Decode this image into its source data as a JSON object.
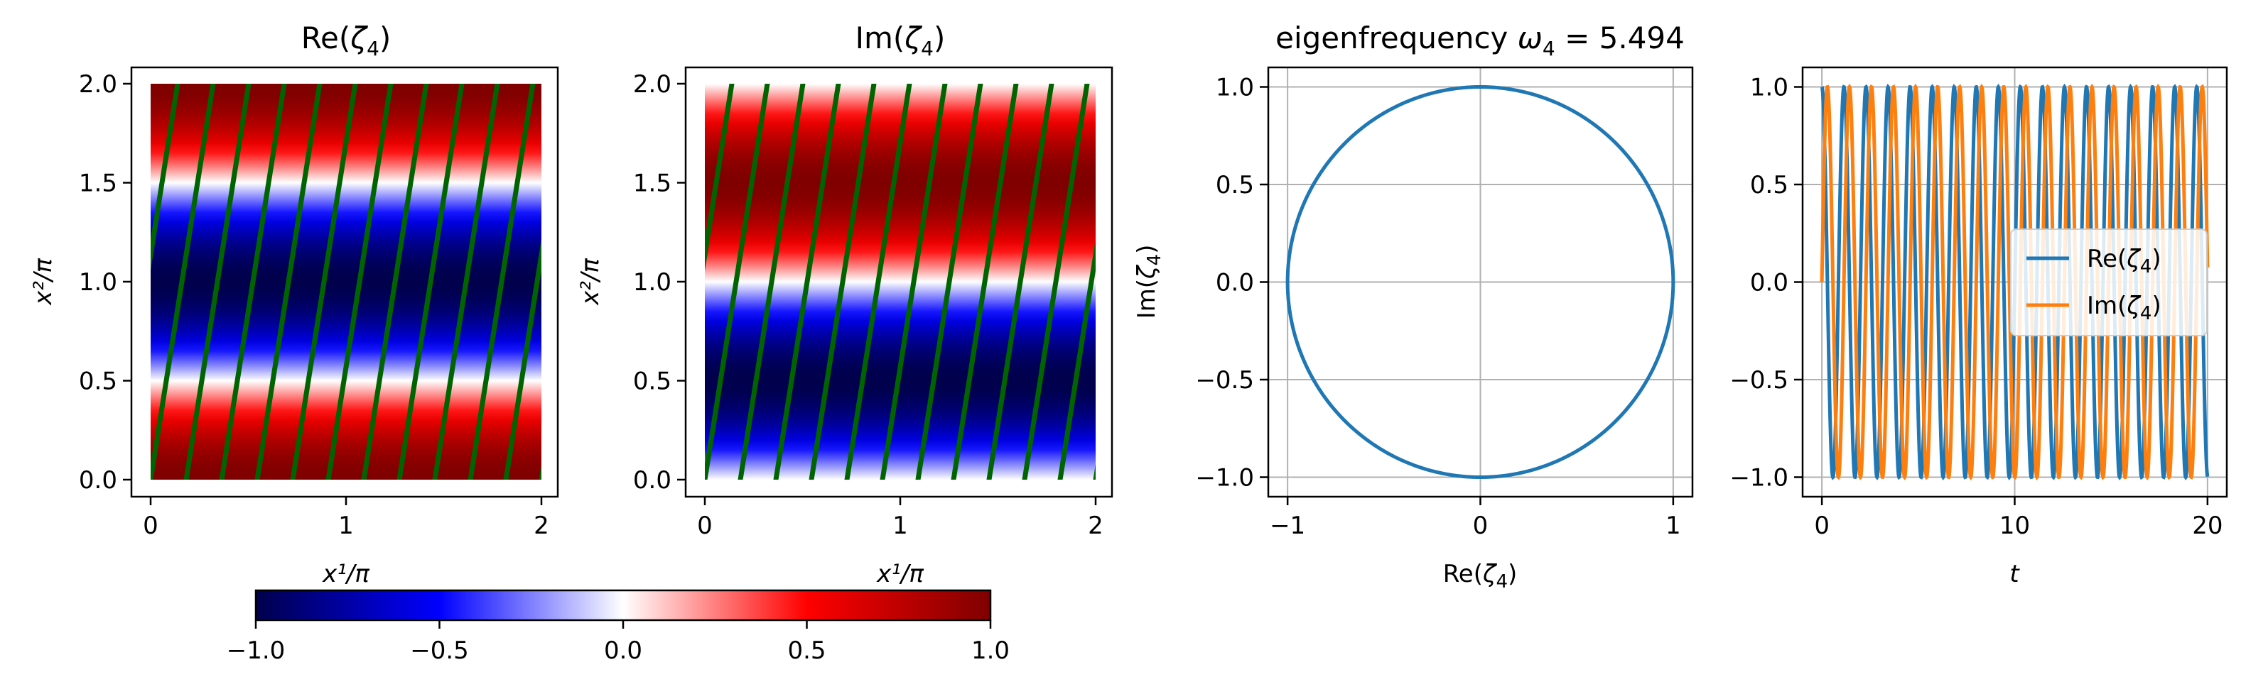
{
  "chart_data": [
    {
      "type": "heatmap",
      "title": "Re(ζ4)",
      "title_main": "Re(",
      "title_var": "ζ",
      "title_sub": "4",
      "title_close": ")",
      "xlabel": "x¹/π",
      "ylabel": "x²/π",
      "xlim": [
        0,
        2
      ],
      "ylim": [
        0,
        2
      ],
      "xticks": [
        0,
        1,
        2
      ],
      "yticks": [
        0.0,
        0.5,
        1.0,
        1.5,
        2.0
      ],
      "field": "cos(pi * x2)",
      "overlay": {
        "name": "trajectory",
        "color": "#006400",
        "segments": 11
      }
    },
    {
      "type": "heatmap",
      "title": "Im(ζ4)",
      "title_main": "Im(",
      "title_var": "ζ",
      "title_sub": "4",
      "title_close": ")",
      "xlabel": "x¹/π",
      "ylabel": "x²/π",
      "xlim": [
        0,
        2
      ],
      "ylim": [
        0,
        2
      ],
      "xticks": [
        0,
        1,
        2
      ],
      "yticks": [
        0.0,
        0.5,
        1.0,
        1.5,
        2.0
      ],
      "field": "-sin(pi * x2)",
      "overlay": {
        "name": "trajectory",
        "color": "#006400",
        "segments": 11
      }
    },
    {
      "type": "line",
      "title": "eigenfrequency ω4 = 5.494",
      "title_prefix": "eigenfrequency ",
      "title_var": "ω",
      "title_sub": "4",
      "title_eq": " = 5.494",
      "xlabel": "Re(ζ4)",
      "ylabel": "Im(ζ4)",
      "xlim": [
        -1.1,
        1.1
      ],
      "ylim": [
        -1.1,
        1.1
      ],
      "xticks": [
        -1,
        0,
        1
      ],
      "yticks": [
        -1.0,
        -0.5,
        0.0,
        0.5,
        1.0
      ],
      "grid": true,
      "series": [
        {
          "name": "unit circle",
          "color": "#1f77b4",
          "x": "cos(θ)",
          "y": "sin(θ)",
          "theta_range": [
            0,
            6.2832
          ]
        }
      ]
    },
    {
      "type": "line",
      "title": "",
      "xlabel": "t",
      "ylabel": "",
      "xlim": [
        -1,
        21
      ],
      "ylim": [
        -1.1,
        1.1
      ],
      "xticks": [
        0,
        10,
        20
      ],
      "yticks": [
        -1.0,
        -0.5,
        0.0,
        0.5,
        1.0
      ],
      "grid": true,
      "omega": 5.494,
      "t_range": [
        0,
        20
      ],
      "series": [
        {
          "name": "Re(ζ4)",
          "color": "#1f77b4",
          "func": "cos(ω t)"
        },
        {
          "name": "Im(ζ4)",
          "color": "#ff7f0e",
          "func": "sin(ω t)"
        }
      ],
      "legend": {
        "placement": "center-right",
        "entries": [
          "Re(ζ4)",
          "Im(ζ4)"
        ]
      }
    }
  ],
  "colorbar": {
    "colormap": "seismic",
    "min": -1.0,
    "max": 1.0,
    "ticks": [
      -1.0,
      -0.5,
      0.0,
      0.5,
      1.0
    ],
    "tick_labels": [
      "−1.0",
      "−0.5",
      "0.0",
      "0.5",
      "1.0"
    ]
  }
}
